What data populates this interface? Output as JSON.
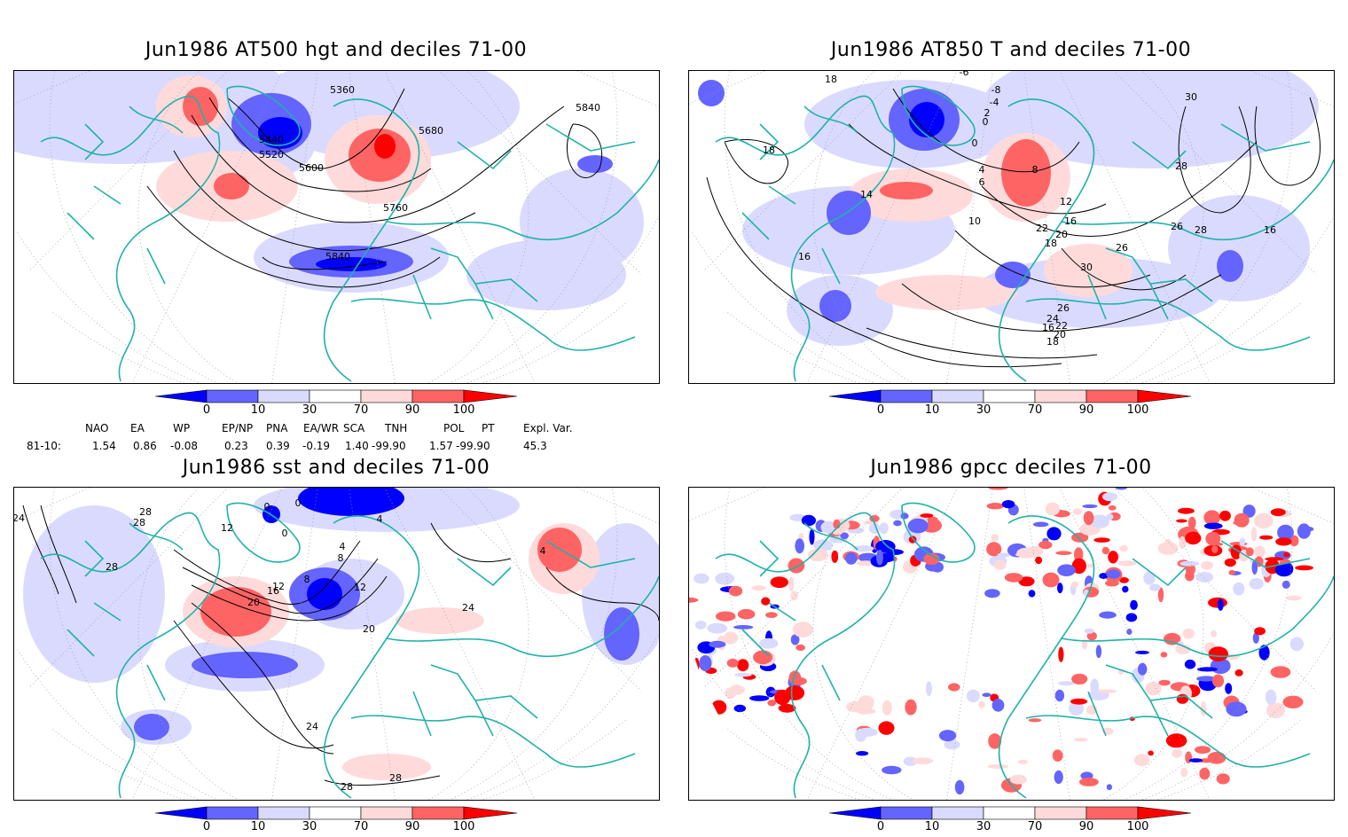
{
  "panels": [
    {
      "title": "Jun1986 AT500 hgt and deciles 71-00",
      "contour_labels": [
        "5360",
        "5440",
        "5520",
        "5600",
        "5680",
        "5760",
        "5840",
        "5840"
      ]
    },
    {
      "title": "Jun1986 AT850 T and deciles 71-00",
      "contour_labels": [
        "18",
        "18",
        "-6",
        "-8",
        "-4",
        "2",
        "0",
        "0",
        "4",
        "6",
        "8",
        "10",
        "12",
        "14",
        "16",
        "16",
        "18",
        "20",
        "22",
        "26",
        "28",
        "30",
        "26",
        "24",
        "22",
        "20",
        "18",
        "16",
        "30",
        "28",
        "26",
        "16"
      ]
    },
    {
      "title": "Jun1986 sst and deciles 71-00",
      "contour_labels": [
        "24",
        "28",
        "28",
        "28",
        "12",
        "0",
        "0",
        "0",
        "4",
        "4",
        "8",
        "8",
        "12",
        "12",
        "16",
        "20",
        "20",
        "24",
        "24",
        "28",
        "28",
        "4"
      ]
    },
    {
      "title": "Jun1986 gpcc deciles 71-00",
      "contour_labels": []
    }
  ],
  "colorbar": {
    "ticks": [
      "0",
      "10",
      "30",
      "70",
      "90",
      "100"
    ],
    "colors": [
      "#0000ff",
      "#6464ff",
      "#dadaff",
      "#ffffff",
      "#ffdada",
      "#ff6464",
      "#ff0000"
    ]
  },
  "teleconnections": {
    "headers": [
      "NAO",
      "EA",
      "WP",
      "EP/NP",
      "PNA",
      "EA/WR",
      "SCA",
      "TNH",
      "POL",
      "PT",
      "Expl. Var."
    ],
    "row_label": "81-10:",
    "values": [
      "1.54",
      "0.86",
      "-0.08",
      "0.23",
      "0.39",
      "-0.19",
      "1.40",
      "-99.90",
      "1.57",
      "-99.90",
      "45.3"
    ]
  },
  "colors": {
    "land_outline": "#20b2aa",
    "contour": "#000000"
  }
}
